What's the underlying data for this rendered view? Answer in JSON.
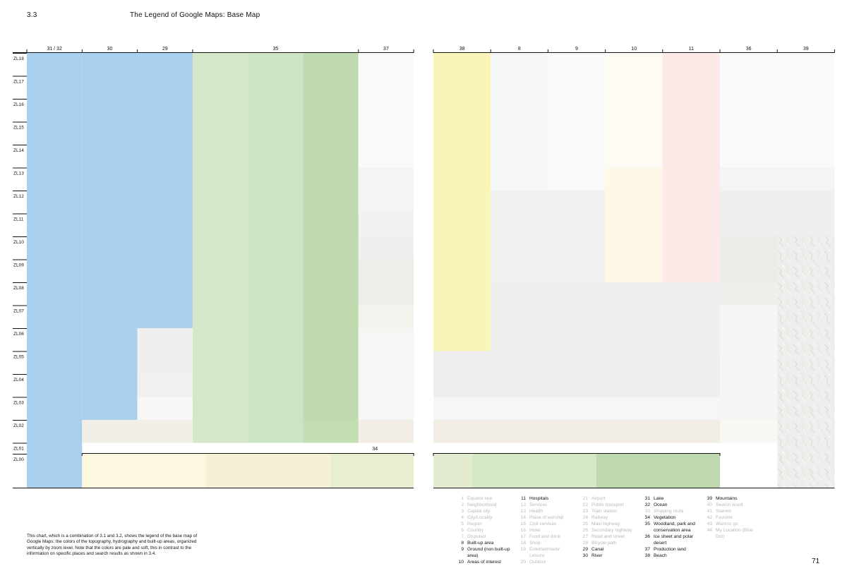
{
  "header": {
    "section": "3.3",
    "title": "The Legend of Google Maps: Base Map"
  },
  "chart_data": {
    "type": "heatmap",
    "title": "The Legend of Google Maps: Base Map",
    "xlabel": "",
    "ylabel": "",
    "rows": [
      "ZL18",
      "ZL17",
      "ZL16",
      "ZL15",
      "ZL14",
      "ZL13",
      "ZL12",
      "ZL11",
      "ZL10",
      "ZL09",
      "ZL08",
      "ZL07",
      "ZL06",
      "ZL05",
      "ZL04",
      "ZL03",
      "ZL02",
      "ZL01",
      "ZL00"
    ],
    "panels": [
      {
        "columns": [
          {
            "label": "31 / 32",
            "span": 1
          },
          {
            "label": "30",
            "span": 1
          },
          {
            "label": "29",
            "span": 1
          },
          {
            "label": "35",
            "span": 3
          },
          {
            "label": "37",
            "span": 1
          }
        ],
        "bottom_bracket": {
          "label": "34",
          "from_col": 1,
          "to_col": 7
        },
        "cells": [
          {
            "c": [
              0,
              1
            ],
            "r": [
              0,
              19
            ],
            "color": "#abd0ee"
          },
          {
            "c": [
              1,
              3
            ],
            "r": [
              0,
              12
            ],
            "color": "#abd0ee"
          },
          {
            "c": [
              1,
              2
            ],
            "r": [
              12,
              16
            ],
            "color": "#abd0ee"
          },
          {
            "c": [
              2,
              3
            ],
            "r": [
              12,
              14
            ],
            "color": "#efefef"
          },
          {
            "c": [
              2,
              3
            ],
            "r": [
              14,
              15
            ],
            "color": "#f0f0f0"
          },
          {
            "c": [
              2,
              3
            ],
            "r": [
              15,
              16
            ],
            "color": "#f7f7f7"
          },
          {
            "c": [
              1,
              3
            ],
            "r": [
              16,
              17
            ],
            "color": "#f2efe6"
          },
          {
            "c": [
              3,
              4
            ],
            "r": [
              0,
              17
            ],
            "color": "#d4e8c9"
          },
          {
            "c": [
              4,
              5
            ],
            "r": [
              0,
              17
            ],
            "color": "#cde4c4"
          },
          {
            "c": [
              5,
              6
            ],
            "r": [
              0,
              16
            ],
            "color": "#bedaae"
          },
          {
            "c": [
              5,
              6
            ],
            "r": [
              16,
              17
            ],
            "color": "#c4deb4"
          },
          {
            "c": [
              6,
              7
            ],
            "r": [
              0,
              5
            ],
            "color": "#f9fafa"
          },
          {
            "c": [
              6,
              7
            ],
            "r": [
              5,
              7
            ],
            "color": "#f4f4f4"
          },
          {
            "c": [
              6,
              7
            ],
            "r": [
              7,
              8
            ],
            "color": "#f2f0f0"
          },
          {
            "c": [
              6,
              7
            ],
            "r": [
              8,
              9
            ],
            "color": "#f1efed"
          },
          {
            "c": [
              6,
              7
            ],
            "r": [
              9,
              11
            ],
            "color": "#efedea"
          },
          {
            "c": [
              6,
              7
            ],
            "r": [
              11,
              12
            ],
            "color": "#f5f3ee"
          },
          {
            "c": [
              6,
              7
            ],
            "r": [
              12,
              16
            ],
            "color": "#f6f6f5"
          },
          {
            "c": [
              6,
              7
            ],
            "r": [
              16,
              17
            ],
            "color": "#f2eee5"
          }
        ],
        "bottom_strips": [
          {
            "from": 1,
            "to": 3.25,
            "color": "#fcf7de"
          },
          {
            "from": 3.25,
            "to": 5.5,
            "color": "#f5f0d6"
          },
          {
            "from": 5.5,
            "to": 7,
            "color": "#e8eed0"
          }
        ]
      },
      {
        "columns": [
          {
            "label": "38",
            "span": 1
          },
          {
            "label": "8",
            "span": 1
          },
          {
            "label": "9",
            "span": 1
          },
          {
            "label": "10",
            "span": 1
          },
          {
            "label": "11",
            "span": 1
          },
          {
            "label": "36",
            "span": 1
          },
          {
            "label": "39",
            "span": 1
          }
        ],
        "bottom_bracket": {
          "label": "",
          "from_col": 0,
          "to_col": 5
        },
        "cells": [
          {
            "c": [
              0,
              1
            ],
            "r": [
              0,
              13
            ],
            "color": "#fbf4b9"
          },
          {
            "c": [
              1,
              2
            ],
            "r": [
              0,
              6
            ],
            "color": "#f6f7f8"
          },
          {
            "c": [
              2,
              3
            ],
            "r": [
              0,
              6
            ],
            "color": "#f9f9fa"
          },
          {
            "c": [
              3,
              4
            ],
            "r": [
              0,
              5
            ],
            "color": "#fefbf4"
          },
          {
            "c": [
              3,
              4
            ],
            "r": [
              5,
              10
            ],
            "color": "#fef9e6"
          },
          {
            "c": [
              4,
              5
            ],
            "r": [
              0,
              10
            ],
            "color": "#fde9e8"
          },
          {
            "c": [
              1,
              3
            ],
            "r": [
              6,
              10
            ],
            "color": "#f1f1f1"
          },
          {
            "c": [
              1,
              5
            ],
            "r": [
              10,
              13
            ],
            "color": "#efefef"
          },
          {
            "c": [
              0,
              5
            ],
            "r": [
              13,
              15
            ],
            "color": "#eeeeee"
          },
          {
            "c": [
              0,
              5
            ],
            "r": [
              15,
              16
            ],
            "color": "#f6f6f6"
          },
          {
            "c": [
              0,
              5
            ],
            "r": [
              16,
              17
            ],
            "color": "#f2eee5"
          },
          {
            "c": [
              5,
              7
            ],
            "r": [
              0,
              5
            ],
            "color": "#f9fafa"
          },
          {
            "c": [
              5,
              7
            ],
            "r": [
              5,
              6
            ],
            "color": "#f4f4f4"
          },
          {
            "c": [
              5,
              7
            ],
            "r": [
              6,
              8
            ],
            "color": "#f0efee"
          },
          {
            "c": [
              5,
              6
            ],
            "r": [
              8,
              10
            ],
            "color": "#ecebe8"
          },
          {
            "c": [
              5,
              6
            ],
            "r": [
              10,
              11
            ],
            "color": "#efeeeb"
          },
          {
            "c": [
              5,
              6
            ],
            "r": [
              11,
              16
            ],
            "color": "#f5f5f3"
          },
          {
            "c": [
              5,
              6
            ],
            "r": [
              16,
              17
            ],
            "color": "#f7f8f3"
          },
          {
            "c": [
              5,
              6
            ],
            "r": [
              17,
              19
            ],
            "color": "#ffffff"
          },
          {
            "c": [
              6,
              7
            ],
            "r": [
              8,
              19
            ],
            "color": "#eeeeec",
            "relief": true
          }
        ],
        "bottom_strips": [
          {
            "from": 0,
            "to": 0.68,
            "color": "#e3ecce"
          },
          {
            "from": 0.68,
            "to": 2.84,
            "color": "#d4e8c6"
          },
          {
            "from": 2.84,
            "to": 5,
            "color": "#bfd9ae"
          }
        ]
      }
    ],
    "legend": {
      "columns": [
        [
          {
            "n": "1",
            "t": "Equator line",
            "on": false
          },
          {
            "n": "2",
            "t": "Neighborhood",
            "on": false
          },
          {
            "n": "3",
            "t": "Capital city",
            "on": false
          },
          {
            "n": "4",
            "t": "City/Locality",
            "on": false
          },
          {
            "n": "5",
            "t": "Region",
            "on": false
          },
          {
            "n": "6",
            "t": "Country",
            "on": false
          },
          {
            "n": "7",
            "t": "Disputed",
            "on": false
          },
          {
            "n": "8",
            "t": "Built-up area",
            "on": true
          },
          {
            "n": "9",
            "t": "Ground (non built-up area)",
            "on": true
          },
          {
            "n": "10",
            "t": "Areas of interest",
            "on": true
          }
        ],
        [
          {
            "n": "11",
            "t": "Hospitals",
            "on": true
          },
          {
            "n": "12",
            "t": "Services",
            "on": false
          },
          {
            "n": "13",
            "t": "Health",
            "on": false
          },
          {
            "n": "14",
            "t": "Place of worship",
            "on": false
          },
          {
            "n": "15",
            "t": "Civil services",
            "on": false
          },
          {
            "n": "16",
            "t": "Hotel",
            "on": false
          },
          {
            "n": "17",
            "t": "Food and drink",
            "on": false
          },
          {
            "n": "18",
            "t": "Shop",
            "on": false
          },
          {
            "n": "19",
            "t": "Entertainment/ Leisure",
            "on": false
          },
          {
            "n": "20",
            "t": "Outdoor",
            "on": false
          }
        ],
        [
          {
            "n": "21",
            "t": "Airport",
            "on": false
          },
          {
            "n": "22",
            "t": "Public transport",
            "on": false
          },
          {
            "n": "23",
            "t": "Train station",
            "on": false
          },
          {
            "n": "24",
            "t": "Railway",
            "on": false
          },
          {
            "n": "25",
            "t": "Main highway",
            "on": false
          },
          {
            "n": "26",
            "t": "Secondary highway",
            "on": false
          },
          {
            "n": "27",
            "t": "Road and street",
            "on": false
          },
          {
            "n": "28",
            "t": "Bicycle path",
            "on": false
          },
          {
            "n": "29",
            "t": "Canal",
            "on": true
          },
          {
            "n": "30",
            "t": "River",
            "on": true
          }
        ],
        [
          {
            "n": "31",
            "t": "Lake",
            "on": true
          },
          {
            "n": "32",
            "t": "Ocean",
            "on": true
          },
          {
            "n": "33",
            "t": "Shipping route",
            "on": false
          },
          {
            "n": "34",
            "t": "Vegetation",
            "on": true
          },
          {
            "n": "35",
            "t": "Woodland, park and conservation area",
            "on": true
          },
          {
            "n": "36",
            "t": "Ice sheet and polar desert",
            "on": true
          },
          {
            "n": "37",
            "t": "Production land",
            "on": true
          },
          {
            "n": "38",
            "t": "Beach",
            "on": true
          }
        ],
        [
          {
            "n": "39",
            "t": "Mountains",
            "on": true
          },
          {
            "n": "40",
            "t": "Search result",
            "on": false
          },
          {
            "n": "41",
            "t": "Starred",
            "on": false
          },
          {
            "n": "42",
            "t": "Favorite",
            "on": false
          },
          {
            "n": "43",
            "t": "Want to go",
            "on": false
          },
          {
            "n": "44",
            "t": "My Location (Blue Dot)",
            "on": false
          }
        ]
      ]
    }
  },
  "caption": "This chart, which is a combination of 3.1 and 3.2, shows the legend of the base map of Google Maps: the colors of the topography, hydrography and built-up areas, organized vertically by zoom level. Note that the colors are pale and soft, this in contrast to the information on specific places and search results as shown in 3.4.",
  "page_number": "71"
}
